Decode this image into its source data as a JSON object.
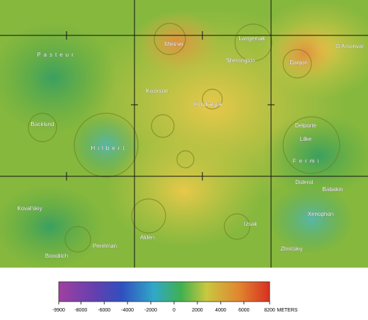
{
  "map": {
    "labels": [
      "Pasteur",
      "Meitner",
      "Langemak",
      "Sherrington",
      "D'Arsonval",
      "Danjon",
      "Kworson",
      "Kondratyuk",
      "Backlund",
      "Hilbert",
      "Delporte",
      "Lilke",
      "Fermi",
      "Diderot",
      "Babakin",
      "Koval'skiy",
      "Xenophon",
      "Izsak",
      "Alden",
      "Perelman",
      "Zhiritskiy",
      "Bowditch"
    ]
  },
  "colorbar": {
    "range": [
      -9900,
      8200
    ],
    "ticks": [
      -9900,
      -8000,
      -6000,
      -4000,
      -2000,
      0,
      2000,
      4000,
      6000,
      8200
    ],
    "unit": "METERS"
  }
}
